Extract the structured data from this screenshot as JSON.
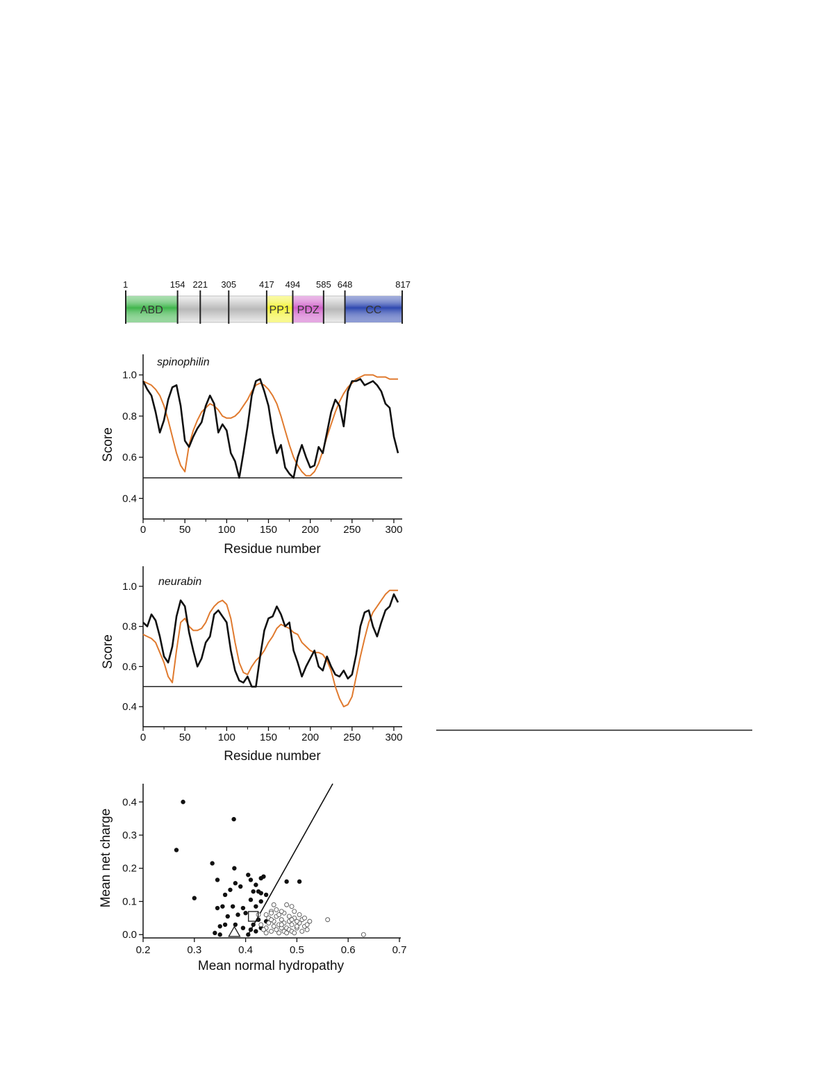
{
  "domain_map": {
    "boundaries": [
      "1",
      "154",
      "221",
      "305",
      "417",
      "494",
      "585",
      "648",
      "817"
    ],
    "domains": [
      {
        "label": "ABD",
        "start": 1,
        "end": 154,
        "color": "#3fb54c"
      },
      {
        "label": "PP1",
        "start": 417,
        "end": 494,
        "color": "#f2f230"
      },
      {
        "label": "PDZ",
        "start": 494,
        "end": 585,
        "color": "#cf5fc9"
      },
      {
        "label": "CC",
        "start": 648,
        "end": 817,
        "color": "#2e48b0"
      }
    ],
    "backbone_color": "#c9c9c9"
  },
  "colors": {
    "black_series": "#111111",
    "orange_series": "#e07a2e",
    "threshold": "#222222"
  },
  "chart_data": [
    {
      "type": "line",
      "title": "spinophilin",
      "xlabel": "Residue number",
      "ylabel": "Score",
      "xlim": [
        0,
        310
      ],
      "ylim": [
        0.3,
        1.1
      ],
      "xticks": [
        0,
        50,
        100,
        150,
        200,
        250,
        300
      ],
      "yticks": [
        0.4,
        0.6,
        0.8,
        1.0
      ],
      "xtick_labels": [
        "0",
        "50",
        "100",
        "150",
        "200",
        "250",
        "300"
      ],
      "ytick_labels": [
        "0.4",
        "0.6",
        "0.8",
        "1.0"
      ],
      "threshold": 0.5,
      "series": [
        {
          "color": "#111111",
          "x": [
            0,
            5,
            10,
            15,
            20,
            25,
            30,
            35,
            40,
            45,
            50,
            55,
            60,
            65,
            70,
            75,
            80,
            85,
            90,
            95,
            100,
            105,
            110,
            115,
            120,
            125,
            130,
            135,
            140,
            145,
            150,
            155,
            160,
            165,
            170,
            175,
            180,
            185,
            190,
            195,
            200,
            205,
            210,
            215,
            220,
            225,
            230,
            235,
            240,
            245,
            250,
            255,
            260,
            265,
            270,
            275,
            280,
            285,
            290,
            295,
            300,
            305
          ],
          "y": [
            0.97,
            0.93,
            0.9,
            0.82,
            0.72,
            0.78,
            0.88,
            0.94,
            0.95,
            0.85,
            0.68,
            0.65,
            0.7,
            0.74,
            0.77,
            0.85,
            0.9,
            0.86,
            0.72,
            0.76,
            0.73,
            0.62,
            0.58,
            0.5,
            0.62,
            0.75,
            0.9,
            0.97,
            0.98,
            0.92,
            0.85,
            0.72,
            0.62,
            0.66,
            0.55,
            0.52,
            0.5,
            0.6,
            0.66,
            0.6,
            0.55,
            0.56,
            0.65,
            0.62,
            0.72,
            0.82,
            0.88,
            0.85,
            0.75,
            0.92,
            0.97,
            0.97,
            0.98,
            0.95,
            0.96,
            0.97,
            0.95,
            0.92,
            0.86,
            0.84,
            0.7,
            0.62
          ]
        },
        {
          "color": "#e07a2e",
          "x": [
            0,
            5,
            10,
            15,
            20,
            25,
            30,
            35,
            40,
            45,
            50,
            55,
            60,
            65,
            70,
            75,
            80,
            85,
            90,
            95,
            100,
            105,
            110,
            115,
            120,
            125,
            130,
            135,
            140,
            145,
            150,
            155,
            160,
            165,
            170,
            175,
            180,
            185,
            190,
            195,
            200,
            205,
            210,
            215,
            220,
            225,
            230,
            235,
            240,
            245,
            250,
            255,
            260,
            265,
            270,
            275,
            280,
            285,
            290,
            295,
            300,
            305
          ],
          "y": [
            0.97,
            0.96,
            0.95,
            0.93,
            0.9,
            0.85,
            0.78,
            0.7,
            0.62,
            0.56,
            0.53,
            0.66,
            0.73,
            0.78,
            0.82,
            0.84,
            0.86,
            0.85,
            0.83,
            0.8,
            0.79,
            0.79,
            0.8,
            0.82,
            0.85,
            0.88,
            0.92,
            0.95,
            0.96,
            0.95,
            0.93,
            0.9,
            0.86,
            0.8,
            0.73,
            0.66,
            0.6,
            0.56,
            0.53,
            0.51,
            0.51,
            0.53,
            0.57,
            0.63,
            0.7,
            0.76,
            0.82,
            0.87,
            0.91,
            0.94,
            0.96,
            0.98,
            0.99,
            1.0,
            1.0,
            1.0,
            0.99,
            0.99,
            0.99,
            0.98,
            0.98,
            0.98
          ]
        }
      ]
    },
    {
      "type": "line",
      "title": "neurabin",
      "xlabel": "Residue number",
      "ylabel": "Score",
      "xlim": [
        0,
        310
      ],
      "ylim": [
        0.3,
        1.1
      ],
      "xticks": [
        0,
        50,
        100,
        150,
        200,
        250,
        300
      ],
      "yticks": [
        0.4,
        0.6,
        0.8,
        1.0
      ],
      "xtick_labels": [
        "0",
        "50",
        "100",
        "150",
        "200",
        "250",
        "300"
      ],
      "ytick_labels": [
        "0.4",
        "0.6",
        "0.8",
        "1.0"
      ],
      "threshold": 0.5,
      "series": [
        {
          "color": "#111111",
          "x": [
            0,
            5,
            10,
            15,
            20,
            25,
            30,
            35,
            40,
            45,
            50,
            55,
            60,
            65,
            70,
            75,
            80,
            85,
            90,
            95,
            100,
            105,
            110,
            115,
            120,
            125,
            130,
            135,
            140,
            145,
            150,
            155,
            160,
            165,
            170,
            175,
            180,
            185,
            190,
            195,
            200,
            205,
            210,
            215,
            220,
            225,
            230,
            235,
            240,
            245,
            250,
            255,
            260,
            265,
            270,
            275,
            280,
            285,
            290,
            295,
            300,
            305
          ],
          "y": [
            0.82,
            0.8,
            0.86,
            0.83,
            0.75,
            0.65,
            0.62,
            0.7,
            0.85,
            0.93,
            0.9,
            0.77,
            0.68,
            0.6,
            0.64,
            0.72,
            0.75,
            0.86,
            0.88,
            0.85,
            0.82,
            0.68,
            0.58,
            0.53,
            0.52,
            0.55,
            0.5,
            0.5,
            0.65,
            0.78,
            0.84,
            0.85,
            0.9,
            0.86,
            0.8,
            0.82,
            0.68,
            0.62,
            0.55,
            0.6,
            0.64,
            0.68,
            0.6,
            0.58,
            0.65,
            0.6,
            0.56,
            0.55,
            0.58,
            0.54,
            0.56,
            0.66,
            0.8,
            0.87,
            0.88,
            0.8,
            0.75,
            0.82,
            0.88,
            0.9,
            0.96,
            0.92
          ]
        },
        {
          "color": "#e07a2e",
          "x": [
            0,
            5,
            10,
            15,
            20,
            25,
            30,
            35,
            40,
            45,
            50,
            55,
            60,
            65,
            70,
            75,
            80,
            85,
            90,
            95,
            100,
            105,
            110,
            115,
            120,
            125,
            130,
            135,
            140,
            145,
            150,
            155,
            160,
            165,
            170,
            175,
            180,
            185,
            190,
            195,
            200,
            205,
            210,
            215,
            220,
            225,
            230,
            235,
            240,
            245,
            250,
            255,
            260,
            265,
            270,
            275,
            280,
            285,
            290,
            295,
            300,
            305
          ],
          "y": [
            0.76,
            0.75,
            0.74,
            0.72,
            0.67,
            0.62,
            0.55,
            0.52,
            0.68,
            0.82,
            0.84,
            0.8,
            0.78,
            0.78,
            0.79,
            0.82,
            0.87,
            0.9,
            0.92,
            0.93,
            0.91,
            0.84,
            0.72,
            0.62,
            0.57,
            0.56,
            0.6,
            0.63,
            0.65,
            0.68,
            0.72,
            0.75,
            0.79,
            0.81,
            0.8,
            0.79,
            0.77,
            0.76,
            0.72,
            0.7,
            0.68,
            0.67,
            0.67,
            0.66,
            0.63,
            0.58,
            0.5,
            0.44,
            0.4,
            0.41,
            0.45,
            0.55,
            0.65,
            0.74,
            0.82,
            0.87,
            0.9,
            0.93,
            0.96,
            0.98,
            0.98,
            0.98
          ]
        }
      ]
    },
    {
      "type": "scatter",
      "xlabel": "Mean normal hydropathy",
      "ylabel": "Mean net charge",
      "xlim": [
        0.2,
        0.7
      ],
      "ylim": [
        -0.01,
        0.455
      ],
      "xticks": [
        0.2,
        0.3,
        0.4,
        0.5,
        0.6,
        0.7
      ],
      "yticks": [
        0.0,
        0.1,
        0.2,
        0.3,
        0.4
      ],
      "xtick_labels": [
        "0.2",
        "0.3",
        "0.4",
        "0.5",
        "0.6",
        "0.7"
      ],
      "ytick_labels": [
        "0.0",
        "0.1",
        "0.2",
        "0.3",
        "0.4"
      ],
      "boundary_line": {
        "x": [
          0.405,
          0.57
        ],
        "y": [
          0.0,
          0.455
        ]
      },
      "series": [
        {
          "marker": "filled-circle",
          "points": [
            [
              0.278,
              0.4
            ],
            [
              0.265,
              0.255
            ],
            [
              0.377,
              0.348
            ],
            [
              0.335,
              0.215
            ],
            [
              0.378,
              0.2
            ],
            [
              0.3,
              0.11
            ],
            [
              0.345,
              0.165
            ],
            [
              0.36,
              0.12
            ],
            [
              0.37,
              0.135
            ],
            [
              0.38,
              0.155
            ],
            [
              0.39,
              0.145
            ],
            [
              0.405,
              0.18
            ],
            [
              0.41,
              0.165
            ],
            [
              0.42,
              0.15
            ],
            [
              0.425,
              0.13
            ],
            [
              0.43,
              0.17
            ],
            [
              0.435,
              0.175
            ],
            [
              0.44,
              0.12
            ],
            [
              0.345,
              0.08
            ],
            [
              0.355,
              0.085
            ],
            [
              0.365,
              0.055
            ],
            [
              0.375,
              0.085
            ],
            [
              0.385,
              0.06
            ],
            [
              0.395,
              0.08
            ],
            [
              0.4,
              0.065
            ],
            [
              0.41,
              0.105
            ],
            [
              0.42,
              0.085
            ],
            [
              0.43,
              0.1
            ],
            [
              0.44,
              0.04
            ],
            [
              0.35,
              0.025
            ],
            [
              0.36,
              0.03
            ],
            [
              0.38,
              0.03
            ],
            [
              0.395,
              0.02
            ],
            [
              0.41,
              0.015
            ],
            [
              0.42,
              0.01
            ],
            [
              0.43,
              0.02
            ],
            [
              0.34,
              0.005
            ],
            [
              0.35,
              0.0
            ],
            [
              0.405,
              0.0
            ],
            [
              0.415,
              0.03
            ],
            [
              0.425,
              0.045
            ],
            [
              0.505,
              0.16
            ],
            [
              0.48,
              0.16
            ],
            [
              0.43,
              0.125
            ],
            [
              0.415,
              0.13
            ]
          ]
        },
        {
          "marker": "open-circle",
          "points": [
            [
              0.44,
              0.06
            ],
            [
              0.445,
              0.05
            ],
            [
              0.45,
              0.07
            ],
            [
              0.455,
              0.04
            ],
            [
              0.46,
              0.055
            ],
            [
              0.465,
              0.03
            ],
            [
              0.47,
              0.045
            ],
            [
              0.475,
              0.065
            ],
            [
              0.48,
              0.02
            ],
            [
              0.485,
              0.04
            ],
            [
              0.49,
              0.03
            ],
            [
              0.495,
              0.05
            ],
            [
              0.5,
              0.02
            ],
            [
              0.505,
              0.035
            ],
            [
              0.51,
              0.01
            ],
            [
              0.515,
              0.025
            ],
            [
              0.52,
              0.015
            ],
            [
              0.45,
              0.01
            ],
            [
              0.455,
              0.025
            ],
            [
              0.46,
              0.015
            ],
            [
              0.465,
              0.005
            ],
            [
              0.47,
              0.02
            ],
            [
              0.475,
              0.01
            ],
            [
              0.48,
              0.005
            ],
            [
              0.485,
              0.015
            ],
            [
              0.49,
              0.01
            ],
            [
              0.495,
              0.005
            ],
            [
              0.5,
              0.04
            ],
            [
              0.44,
              0.02
            ],
            [
              0.445,
              0.035
            ],
            [
              0.435,
              0.015
            ],
            [
              0.44,
              0.005
            ],
            [
              0.45,
              0.045
            ],
            [
              0.46,
              0.075
            ],
            [
              0.47,
              0.07
            ],
            [
              0.48,
              0.09
            ],
            [
              0.49,
              0.085
            ],
            [
              0.455,
              0.09
            ],
            [
              0.465,
              0.06
            ],
            [
              0.475,
              0.035
            ],
            [
              0.485,
              0.055
            ],
            [
              0.495,
              0.07
            ],
            [
              0.505,
              0.06
            ],
            [
              0.51,
              0.045
            ],
            [
              0.515,
              0.05
            ],
            [
              0.52,
              0.03
            ],
            [
              0.525,
              0.04
            ],
            [
              0.56,
              0.045
            ],
            [
              0.63,
              0.0
            ],
            [
              0.45,
              0.065
            ],
            [
              0.43,
              0.03
            ],
            [
              0.425,
              0.06
            ],
            [
              0.47,
              0.03
            ],
            [
              0.49,
              0.045
            ],
            [
              0.5,
              0.025
            ]
          ]
        },
        {
          "marker": "open-square",
          "points": [
            [
              0.415,
              0.055
            ]
          ]
        },
        {
          "marker": "open-triangle",
          "points": [
            [
              0.378,
              0.005
            ]
          ]
        }
      ]
    }
  ],
  "separator_line": true
}
